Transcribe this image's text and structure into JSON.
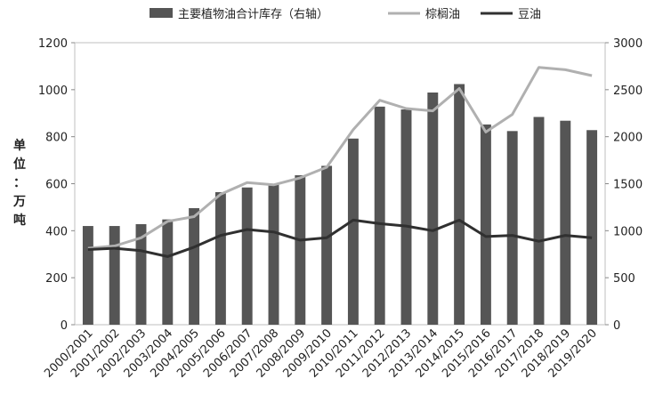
{
  "chart_data": {
    "type": "bar",
    "categories": [
      "2000/2001",
      "2001/2002",
      "2002/2003",
      "2003/2004",
      "2004/2005",
      "2005/2006",
      "2006/2007",
      "2007/2008",
      "2008/2009",
      "2009/2010",
      "2010/2011",
      "2011/2012",
      "2012/2013",
      "2013/2014",
      "2014/2015",
      "2015/2016",
      "2016/2017",
      "2017/2018",
      "2018/2019",
      "2019/2020"
    ],
    "ylabel": "单位：万吨",
    "ylim_left": [
      0,
      1200
    ],
    "ylim_right": [
      0,
      3000
    ],
    "yticks_left": [
      "0",
      "200",
      "400",
      "600",
      "800",
      "1000",
      "1200"
    ],
    "yticks_right": [
      "0",
      "500",
      "1000",
      "1500",
      "2000",
      "2500",
      "3000"
    ],
    "legend": [
      "主要植物油合计库存（右轴）",
      "棕榈油",
      "豆油"
    ],
    "legend_position": "top",
    "grid": false,
    "series": [
      {
        "name": "主要植物油合计库存（右轴）",
        "axis": "right",
        "kind": "bar",
        "color": "#555555",
        "values": [
          1050,
          1050,
          1070,
          1120,
          1240,
          1410,
          1460,
          1500,
          1590,
          1690,
          1980,
          2320,
          2290,
          2470,
          2560,
          2130,
          2060,
          2210,
          2170,
          2070
        ]
      },
      {
        "name": "棕榈油",
        "axis": "left",
        "kind": "line",
        "color": "#b0b0b0",
        "values": [
          325,
          335,
          370,
          440,
          460,
          555,
          605,
          595,
          625,
          670,
          830,
          955,
          920,
          910,
          1005,
          820,
          895,
          1095,
          1085,
          1060
        ]
      },
      {
        "name": "豆油",
        "axis": "left",
        "kind": "line",
        "color": "#303030",
        "values": [
          320,
          325,
          315,
          290,
          330,
          380,
          405,
          395,
          360,
          370,
          445,
          430,
          420,
          400,
          445,
          375,
          380,
          355,
          380,
          370
        ]
      }
    ]
  }
}
